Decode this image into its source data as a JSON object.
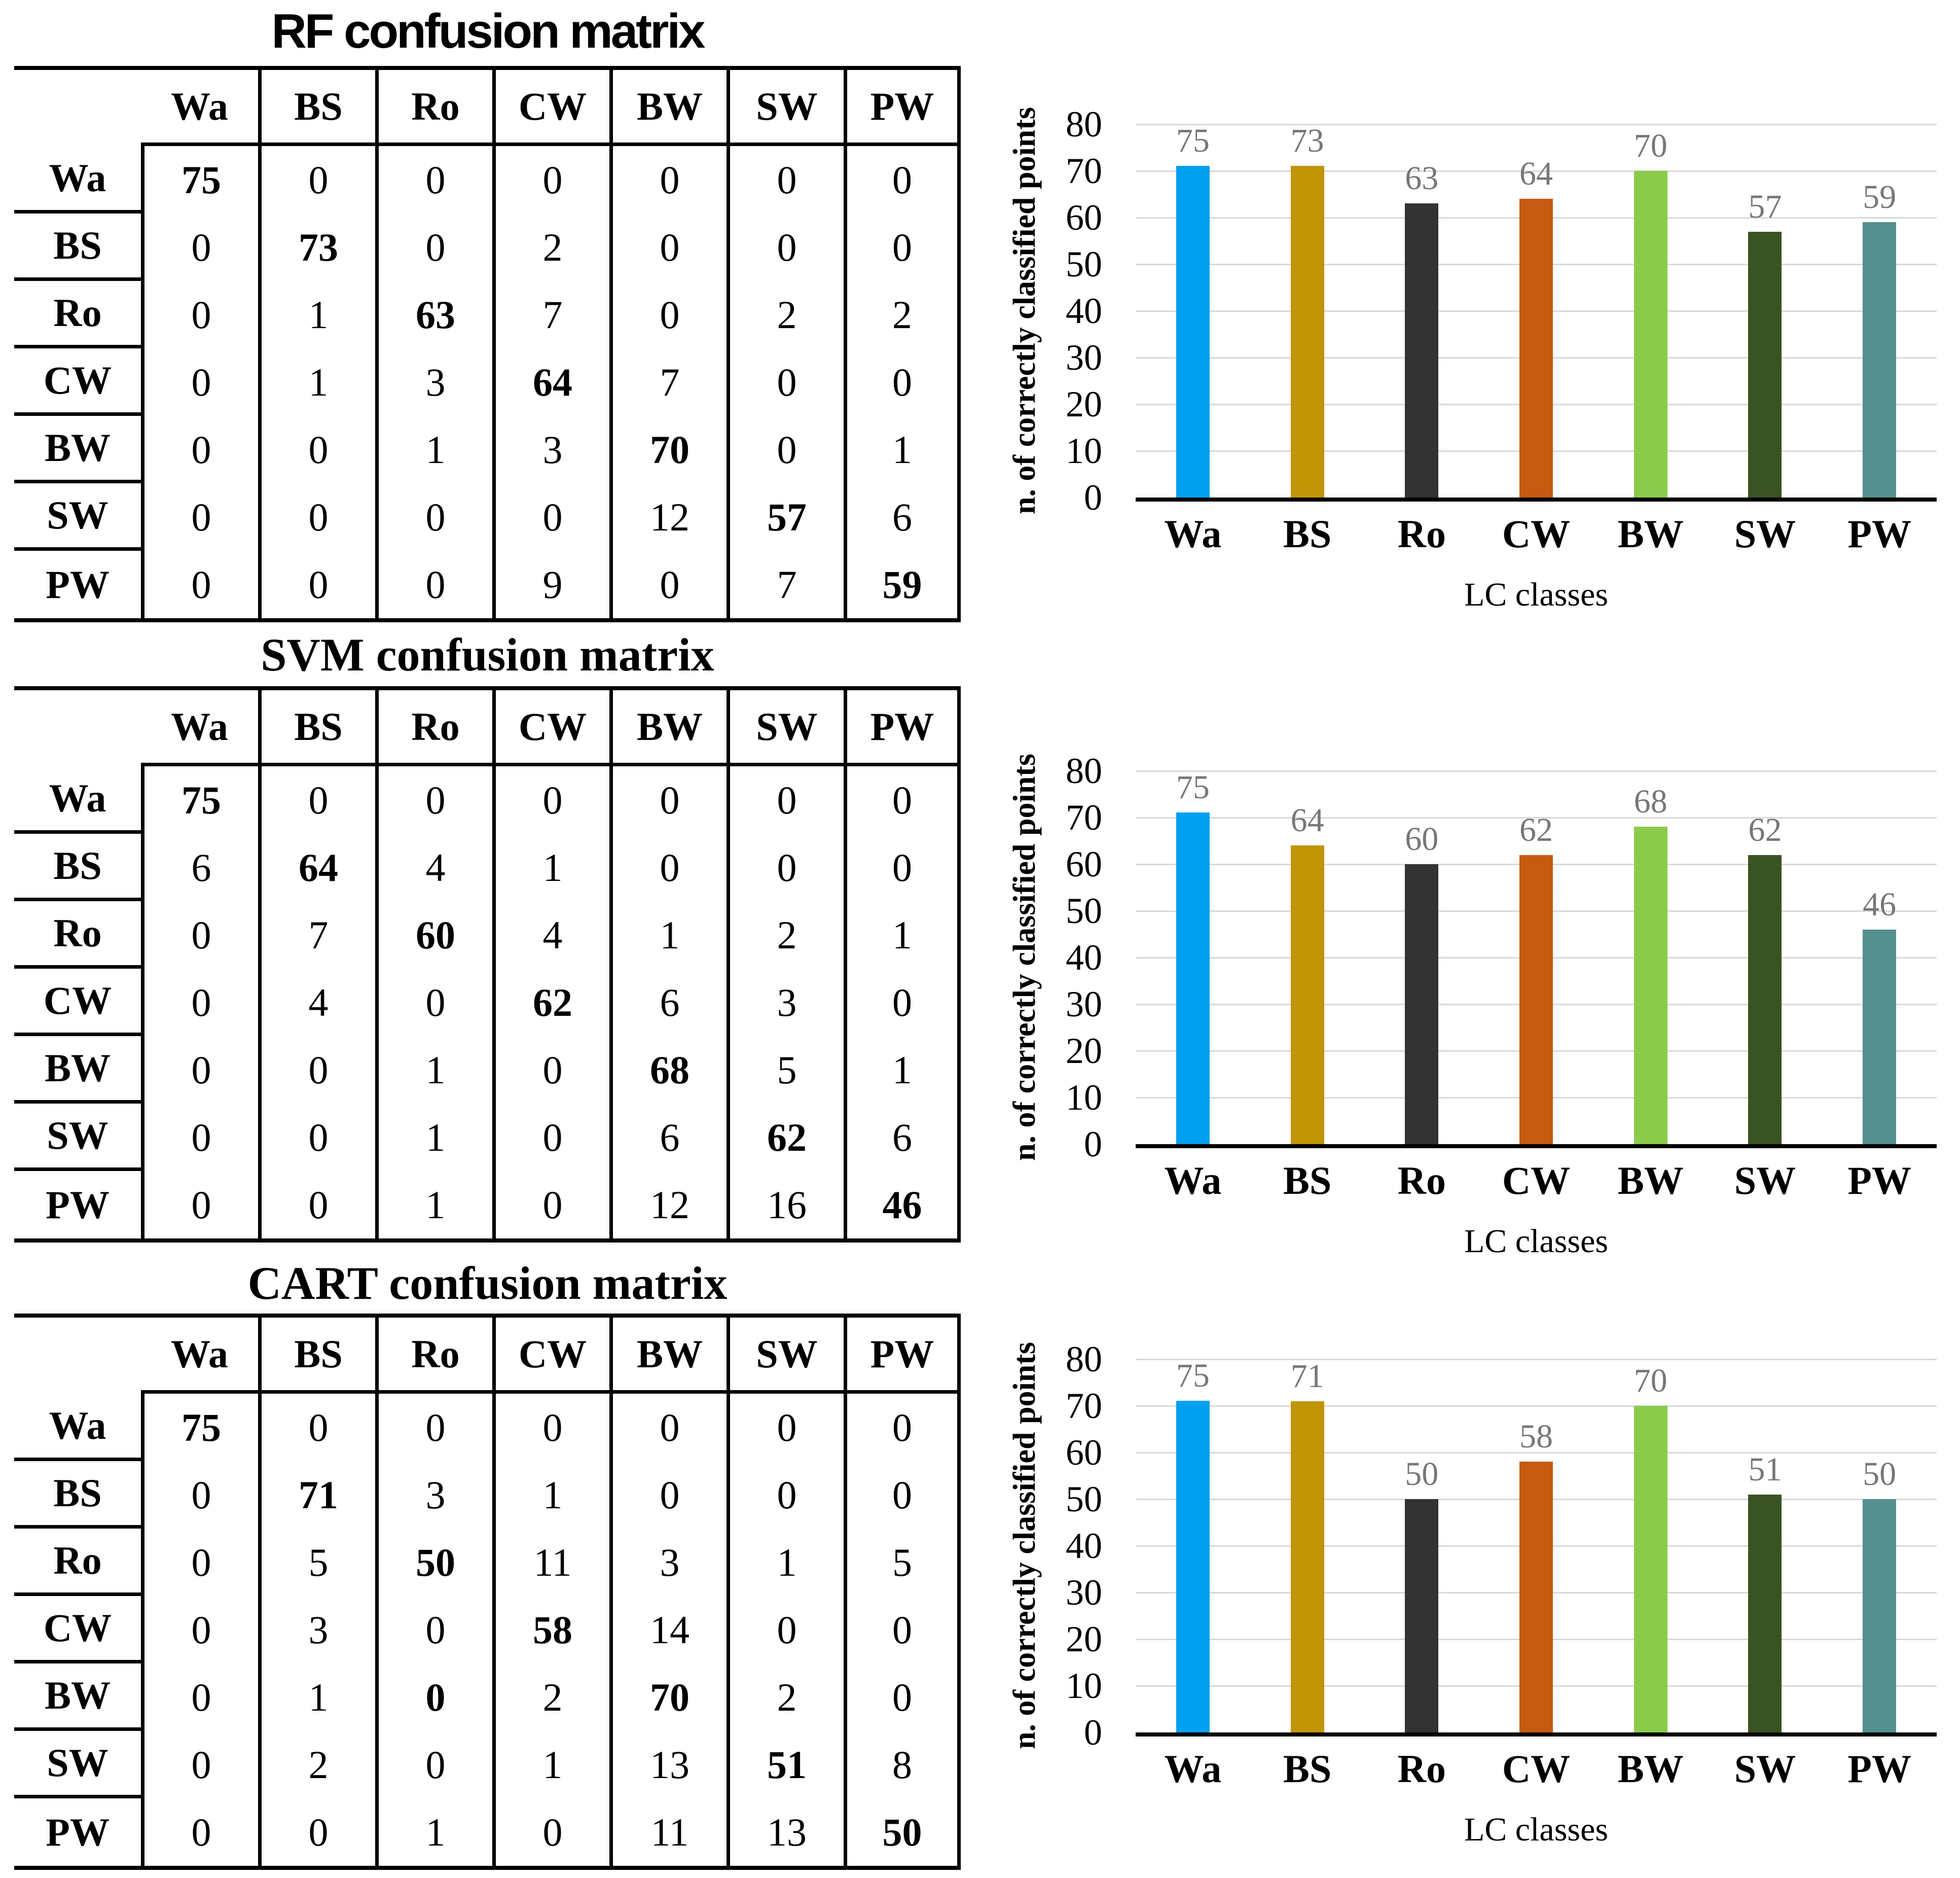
{
  "classes": [
    "Wa",
    "BS",
    "Ro",
    "CW",
    "BW",
    "SW",
    "PW"
  ],
  "chart_data": [
    {
      "type": "table",
      "title": "RF confusion matrix",
      "col_headers": [
        "Wa",
        "BS",
        "Ro",
        "CW",
        "BW",
        "SW",
        "PW"
      ],
      "row_headers": [
        "Wa",
        "BS",
        "Ro",
        "CW",
        "BW",
        "SW",
        "PW"
      ],
      "values": [
        [
          75,
          0,
          0,
          0,
          0,
          0,
          0
        ],
        [
          0,
          73,
          0,
          2,
          0,
          0,
          0
        ],
        [
          0,
          1,
          63,
          7,
          0,
          2,
          2
        ],
        [
          0,
          1,
          3,
          64,
          7,
          0,
          0
        ],
        [
          0,
          0,
          1,
          3,
          70,
          0,
          1
        ],
        [
          0,
          0,
          0,
          0,
          12,
          57,
          6
        ],
        [
          0,
          0,
          0,
          9,
          0,
          7,
          59
        ]
      ],
      "bold_cells": [
        [
          0,
          0
        ],
        [
          1,
          1
        ],
        [
          2,
          2
        ],
        [
          3,
          3
        ],
        [
          4,
          4
        ],
        [
          5,
          5
        ],
        [
          6,
          6
        ]
      ]
    },
    {
      "type": "bar",
      "categories": [
        "Wa",
        "BS",
        "Ro",
        "CW",
        "BW",
        "SW",
        "PW"
      ],
      "values": [
        75,
        73,
        63,
        64,
        70,
        57,
        59
      ],
      "xlabel": "LC classes",
      "ylabel": "n. of correctly classified points",
      "ylim": [
        0,
        80
      ],
      "yticks": [
        0,
        10,
        20,
        30,
        40,
        50,
        60,
        70,
        80
      ],
      "grid": true,
      "legend": false,
      "colors": [
        "#00A0F0",
        "#C19406",
        "#333333",
        "#C55A11",
        "#8BCB4B",
        "#3A5323",
        "#53908F"
      ],
      "value_label_color": "#777777",
      "gridline_color": "#D9D9D9"
    },
    {
      "type": "table",
      "title": "SVM confusion matrix",
      "col_headers": [
        "Wa",
        "BS",
        "Ro",
        "CW",
        "BW",
        "SW",
        "PW"
      ],
      "row_headers": [
        "Wa",
        "BS",
        "Ro",
        "CW",
        "BW",
        "SW",
        "PW"
      ],
      "values": [
        [
          75,
          0,
          0,
          0,
          0,
          0,
          0
        ],
        [
          6,
          64,
          4,
          1,
          0,
          0,
          0
        ],
        [
          0,
          7,
          60,
          4,
          1,
          2,
          1
        ],
        [
          0,
          4,
          0,
          62,
          6,
          3,
          0
        ],
        [
          0,
          0,
          1,
          0,
          68,
          5,
          1
        ],
        [
          0,
          0,
          1,
          0,
          6,
          62,
          6
        ],
        [
          0,
          0,
          1,
          0,
          12,
          16,
          46
        ]
      ],
      "bold_cells": [
        [
          0,
          0
        ],
        [
          1,
          1
        ],
        [
          2,
          2
        ],
        [
          3,
          3
        ],
        [
          4,
          4
        ],
        [
          5,
          5
        ],
        [
          6,
          6
        ]
      ]
    },
    {
      "type": "bar",
      "categories": [
        "Wa",
        "BS",
        "Ro",
        "CW",
        "BW",
        "SW",
        "PW"
      ],
      "values": [
        75,
        64,
        60,
        62,
        68,
        62,
        46
      ],
      "xlabel": "LC classes",
      "ylabel": "n. of correctly classified points",
      "ylim": [
        0,
        80
      ],
      "yticks": [
        0,
        10,
        20,
        30,
        40,
        50,
        60,
        70,
        80
      ],
      "grid": true,
      "legend": false,
      "colors": [
        "#00A0F0",
        "#C19406",
        "#333333",
        "#C55A11",
        "#8BCB4B",
        "#3A5323",
        "#53908F"
      ],
      "value_label_color": "#777777",
      "gridline_color": "#D9D9D9"
    },
    {
      "type": "table",
      "title": "CART confusion matrix",
      "col_headers": [
        "Wa",
        "BS",
        "Ro",
        "CW",
        "BW",
        "SW",
        "PW"
      ],
      "row_headers": [
        "Wa",
        "BS",
        "Ro",
        "CW",
        "BW",
        "SW",
        "PW"
      ],
      "values": [
        [
          75,
          0,
          0,
          0,
          0,
          0,
          0
        ],
        [
          0,
          71,
          3,
          1,
          0,
          0,
          0
        ],
        [
          0,
          5,
          50,
          11,
          3,
          1,
          5
        ],
        [
          0,
          3,
          0,
          58,
          14,
          0,
          0
        ],
        [
          0,
          1,
          0,
          2,
          70,
          2,
          0
        ],
        [
          0,
          2,
          0,
          1,
          13,
          51,
          8
        ],
        [
          0,
          0,
          1,
          0,
          11,
          13,
          50
        ]
      ],
      "bold_cells": [
        [
          0,
          0
        ],
        [
          1,
          1
        ],
        [
          2,
          2
        ],
        [
          3,
          3
        ],
        [
          4,
          4
        ],
        [
          4,
          2
        ],
        [
          5,
          5
        ],
        [
          6,
          6
        ]
      ]
    },
    {
      "type": "bar",
      "categories": [
        "Wa",
        "BS",
        "Ro",
        "CW",
        "BW",
        "SW",
        "PW"
      ],
      "values": [
        75,
        71,
        50,
        58,
        70,
        51,
        50
      ],
      "xlabel": "LC classes",
      "ylabel": "n. of correctly classified points",
      "ylim": [
        0,
        80
      ],
      "yticks": [
        0,
        10,
        20,
        30,
        40,
        50,
        60,
        70,
        80
      ],
      "grid": true,
      "legend": false,
      "colors": [
        "#00A0F0",
        "#C19406",
        "#333333",
        "#C55A11",
        "#8BCB4B",
        "#3A5323",
        "#53908F"
      ],
      "value_label_color": "#777777",
      "gridline_color": "#D9D9D9"
    }
  ]
}
